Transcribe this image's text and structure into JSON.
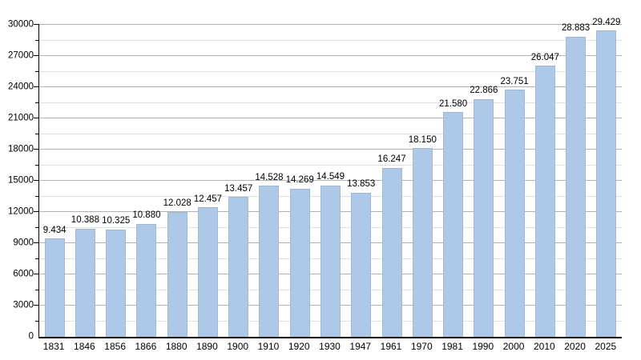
{
  "chart_data": {
    "type": "bar",
    "categories": [
      "1831",
      "1846",
      "1856",
      "1866",
      "1880",
      "1890",
      "1900",
      "1910",
      "1920",
      "1930",
      "1947",
      "1961",
      "1970",
      "1981",
      "1990",
      "2000",
      "2010",
      "2020",
      "2025"
    ],
    "values": [
      9434,
      10388,
      10325,
      10880,
      12028,
      12457,
      13457,
      14528,
      14269,
      14549,
      13853,
      16247,
      18150,
      21580,
      22866,
      23751,
      26047,
      28883,
      29429
    ],
    "value_labels": [
      "9.434",
      "10.388",
      "10.325",
      "10.880",
      "12.028",
      "12.457",
      "13.457",
      "14.528",
      "14.269",
      "14.549",
      "13.853",
      "16.247",
      "18.150",
      "21.580",
      "22.866",
      "23.751",
      "26.047",
      "28.883",
      "29.429"
    ],
    "ylim": [
      0,
      30000
    ],
    "y_major_step": 3000,
    "y_minor_step": 1500,
    "y_tick_labels": [
      "0",
      "3000",
      "6000",
      "9000",
      "12000",
      "15000",
      "18000",
      "21000",
      "24000",
      "27000",
      "30000"
    ],
    "grid": "on",
    "legend": "none",
    "colors": {
      "bar_fill": "#aec9e8",
      "bar_border": "#a0b8d2",
      "grid_major": "#b2b2b2",
      "grid_minor": "#e0e0e0",
      "axis": "#000000",
      "text": "#000000",
      "background": "#ffffff"
    }
  }
}
